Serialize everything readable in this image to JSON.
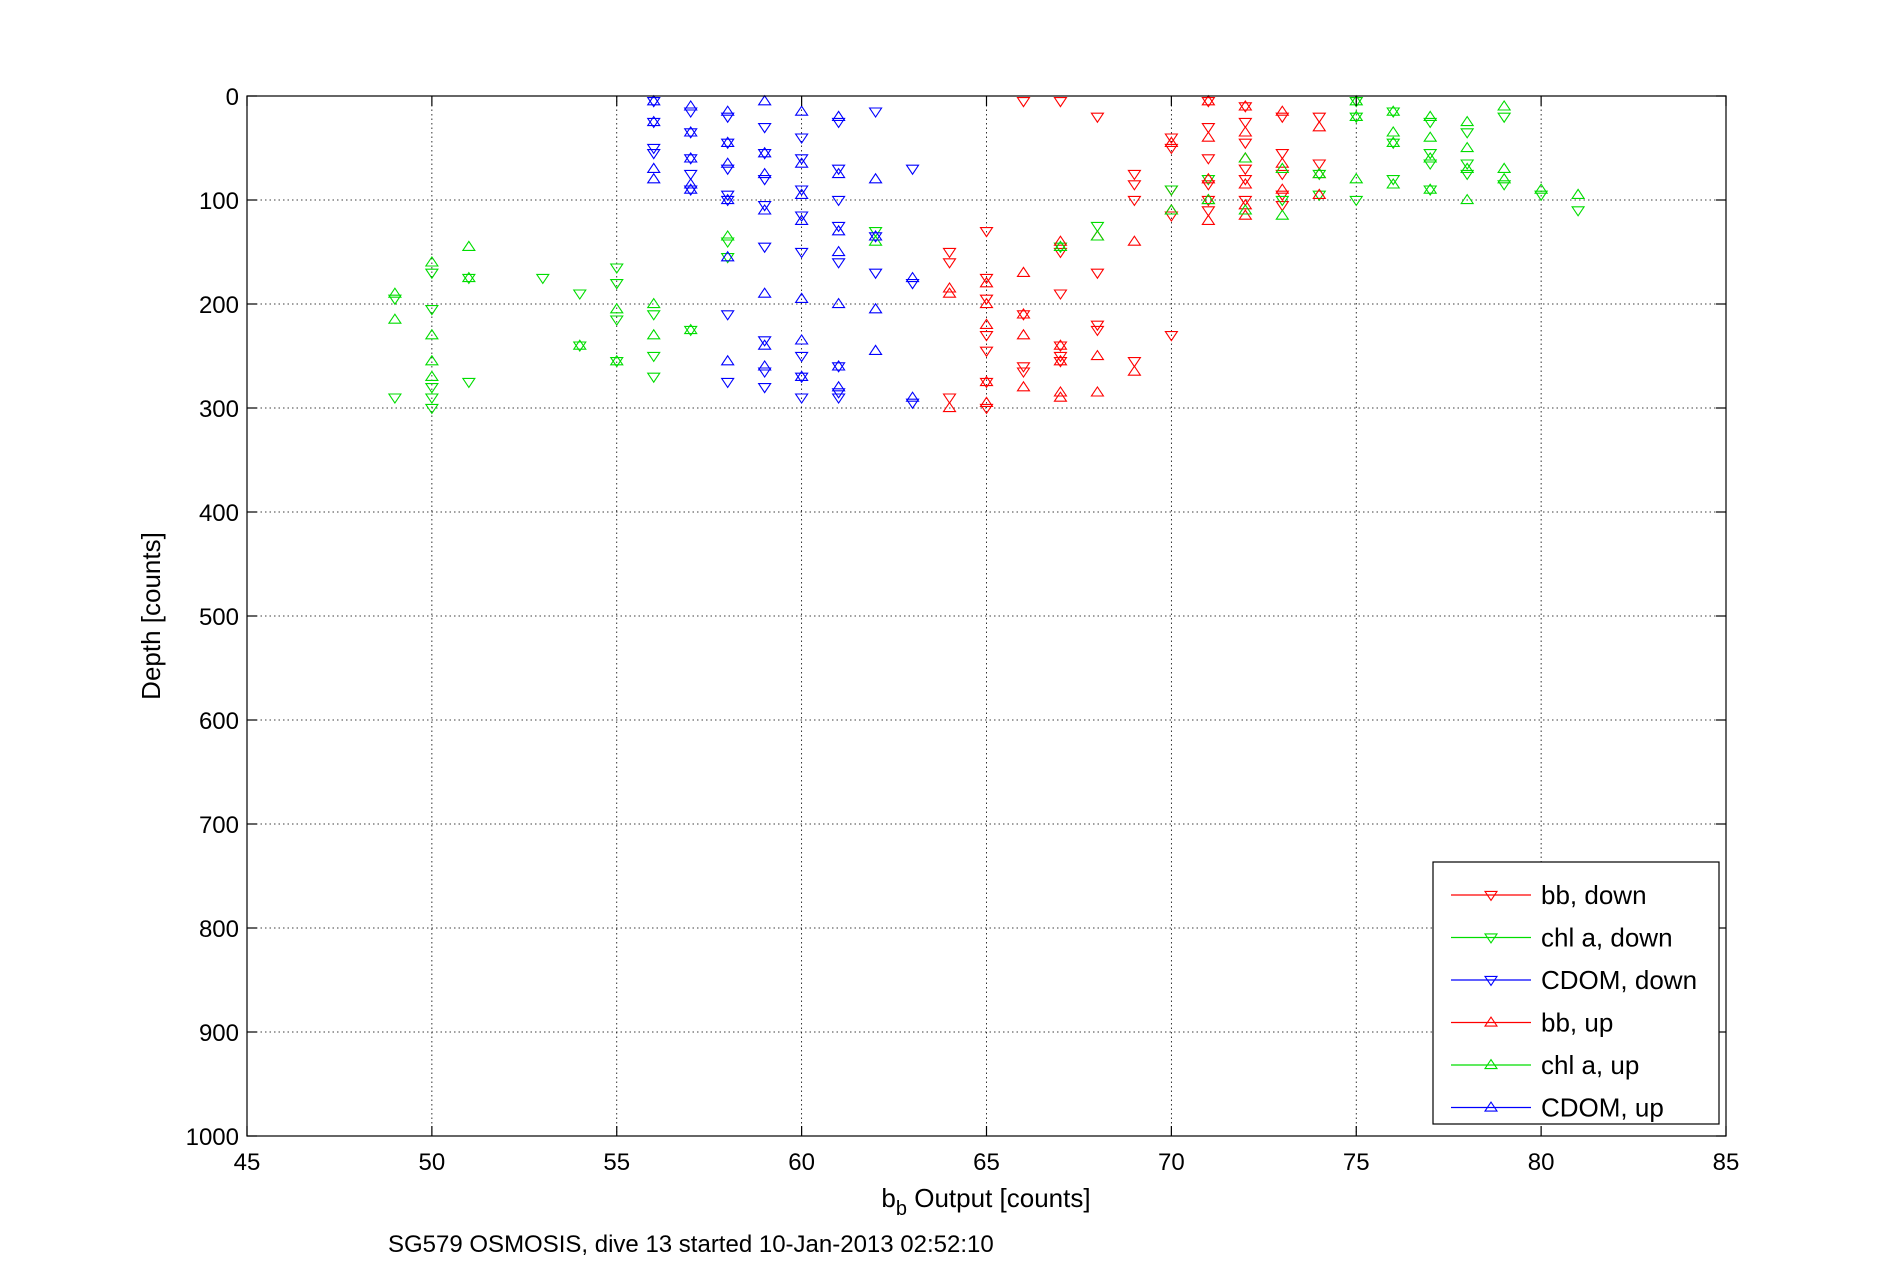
{
  "chart_data": {
    "type": "scatter",
    "title": "",
    "xlabel": {
      "main": "b",
      "sub": "b",
      "rest": " Output [counts]"
    },
    "ylabel": "Depth [counts]",
    "caption": "SG579 OSMOSIS, dive 13 started 10-Jan-2013 02:52:10",
    "xlim": [
      45,
      85
    ],
    "ylim": [
      0,
      1000
    ],
    "y_reversed": true,
    "grid": true,
    "x_ticks": [
      "45",
      "50",
      "55",
      "60",
      "65",
      "70",
      "75",
      "80",
      "85"
    ],
    "y_ticks": [
      "0",
      "100",
      "200",
      "300",
      "400",
      "500",
      "600",
      "700",
      "800",
      "900",
      "1000"
    ],
    "legend_position": "bottom-right",
    "series": [
      {
        "name": "bb, down",
        "color": "#ff0000",
        "marker": "triangle-down",
        "x": [
          71,
          72,
          73,
          74,
          72,
          71,
          70,
          72,
          73,
          71,
          74,
          72,
          70,
          73,
          72,
          71,
          70,
          73,
          71,
          69,
          69,
          72,
          73,
          71,
          70,
          69,
          68,
          67,
          66,
          65,
          64,
          64,
          65,
          65,
          66,
          65,
          67,
          67,
          66,
          68,
          67,
          68,
          69,
          70,
          65,
          66,
          65,
          65,
          64,
          67,
          68,
          67
        ],
        "y": [
          5,
          10,
          20,
          20,
          25,
          30,
          40,
          45,
          55,
          60,
          65,
          70,
          50,
          75,
          80,
          85,
          90,
          95,
          100,
          75,
          85,
          100,
          105,
          110,
          115,
          100,
          20,
          5,
          5,
          130,
          150,
          160,
          175,
          195,
          210,
          230,
          240,
          250,
          260,
          220,
          255,
          225,
          255,
          230,
          245,
          265,
          275,
          300,
          290,
          150,
          170,
          190
        ]
      },
      {
        "name": "chl a, down",
        "color": "#00dd00",
        "marker": "triangle-down",
        "x": [
          75,
          76,
          77,
          78,
          79,
          76,
          77,
          75,
          78,
          74,
          76,
          77,
          73,
          74,
          75,
          71,
          70,
          68,
          67,
          62,
          58,
          58,
          55,
          55,
          54,
          53,
          51,
          50,
          49,
          50,
          51,
          55,
          56,
          57,
          56,
          55,
          50,
          49,
          50,
          56,
          54,
          50,
          81,
          80,
          79,
          78,
          77
        ],
        "y": [
          5,
          15,
          25,
          35,
          20,
          45,
          55,
          20,
          65,
          75,
          80,
          90,
          100,
          95,
          100,
          80,
          90,
          125,
          145,
          130,
          140,
          155,
          165,
          180,
          190,
          175,
          175,
          170,
          195,
          205,
          275,
          215,
          210,
          225,
          250,
          255,
          290,
          290,
          300,
          270,
          240,
          280,
          110,
          95,
          85,
          75,
          65
        ]
      },
      {
        "name": "CDOM, down",
        "color": "#0000ff",
        "marker": "triangle-down",
        "x": [
          56,
          57,
          58,
          59,
          60,
          61,
          56,
          57,
          58,
          59,
          60,
          61,
          62,
          63,
          56,
          57,
          58,
          59,
          60,
          61,
          58,
          59,
          60,
          61,
          62,
          63,
          59,
          60,
          61,
          62,
          58,
          59,
          60,
          61,
          63,
          58,
          59,
          60,
          61,
          57,
          56,
          57,
          58,
          59,
          60,
          61
        ],
        "y": [
          5,
          15,
          20,
          30,
          40,
          25,
          25,
          35,
          45,
          55,
          60,
          70,
          15,
          70,
          50,
          60,
          70,
          80,
          90,
          100,
          95,
          105,
          115,
          125,
          135,
          180,
          145,
          150,
          160,
          170,
          210,
          235,
          250,
          260,
          295,
          275,
          280,
          290,
          290,
          75,
          55,
          90,
          100,
          265,
          270,
          285
        ]
      },
      {
        "name": "bb, up",
        "color": "#ff0000",
        "marker": "triangle-up",
        "x": [
          71,
          72,
          73,
          74,
          72,
          71,
          70,
          72,
          73,
          74,
          71,
          72,
          73,
          74,
          71,
          72,
          70,
          69,
          68,
          67,
          66,
          65,
          64,
          64,
          65,
          65,
          66,
          66,
          67,
          67,
          68,
          69,
          65,
          66,
          67,
          67,
          65,
          64,
          68,
          71,
          72
        ],
        "y": [
          5,
          10,
          15,
          30,
          35,
          40,
          45,
          60,
          65,
          75,
          80,
          85,
          90,
          95,
          100,
          105,
          110,
          140,
          135,
          140,
          170,
          180,
          185,
          190,
          200,
          220,
          210,
          230,
          240,
          255,
          250,
          265,
          275,
          280,
          285,
          290,
          295,
          300,
          285,
          120,
          115
        ]
      },
      {
        "name": "chl a, up",
        "color": "#00dd00",
        "marker": "triangle-up",
        "x": [
          75,
          76,
          77,
          78,
          79,
          76,
          77,
          78,
          79,
          75,
          76,
          77,
          78,
          72,
          73,
          74,
          72,
          73,
          71,
          70,
          68,
          67,
          62,
          58,
          56,
          55,
          50,
          49,
          50,
          51,
          51,
          50,
          49,
          50,
          54,
          55,
          56,
          57,
          81,
          80,
          79,
          78,
          77,
          75,
          76
        ],
        "y": [
          5,
          15,
          20,
          25,
          10,
          35,
          40,
          50,
          70,
          80,
          85,
          90,
          100,
          60,
          70,
          75,
          110,
          115,
          100,
          110,
          135,
          145,
          140,
          135,
          200,
          205,
          160,
          190,
          230,
          145,
          175,
          255,
          215,
          270,
          240,
          255,
          230,
          225,
          95,
          90,
          80,
          70,
          60,
          20,
          45
        ]
      },
      {
        "name": "CDOM, up",
        "color": "#0000ff",
        "marker": "triangle-up",
        "x": [
          56,
          57,
          58,
          59,
          60,
          61,
          56,
          57,
          58,
          59,
          60,
          61,
          62,
          56,
          57,
          58,
          59,
          60,
          61,
          62,
          63,
          58,
          59,
          60,
          61,
          62,
          59,
          60,
          61,
          62,
          58,
          59,
          60,
          61,
          63,
          57,
          56,
          57,
          58,
          59,
          60,
          61
        ],
        "y": [
          5,
          10,
          15,
          5,
          15,
          20,
          25,
          35,
          45,
          55,
          65,
          75,
          80,
          80,
          90,
          100,
          110,
          120,
          130,
          135,
          175,
          155,
          190,
          195,
          200,
          205,
          240,
          235,
          260,
          245,
          255,
          260,
          270,
          280,
          290,
          85,
          70,
          60,
          65,
          75,
          95,
          150
        ]
      }
    ]
  }
}
